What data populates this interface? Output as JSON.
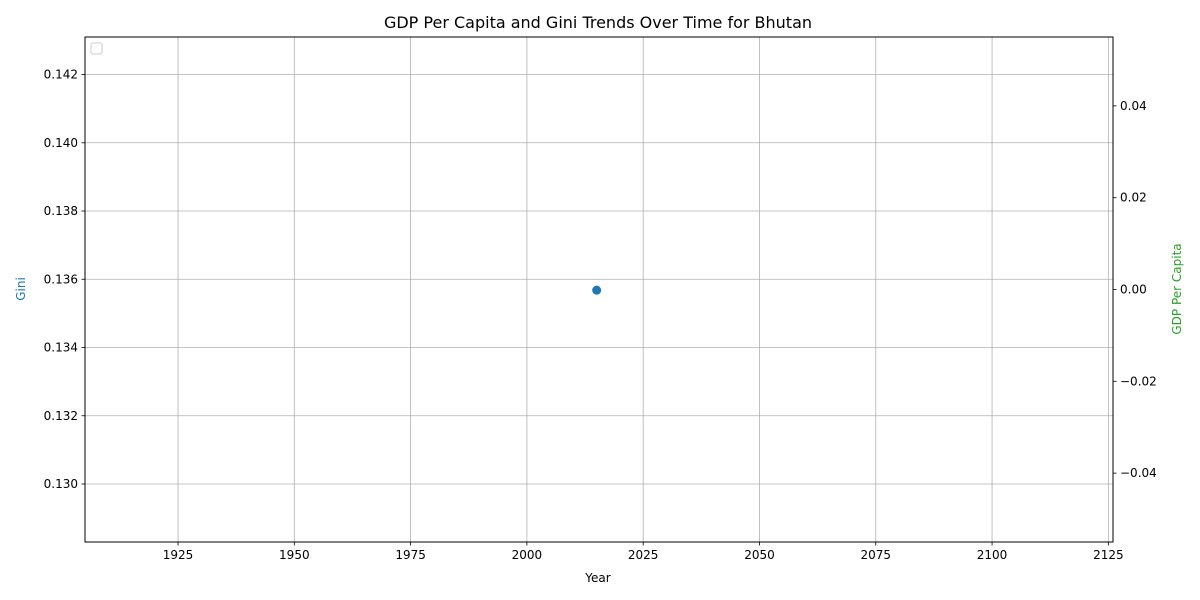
{
  "chart_data": {
    "type": "scatter",
    "title": "GDP Per Capita and Gini Trends Over Time for Bhutan",
    "xlabel": "Year",
    "ylabel_left": "Gini",
    "ylabel_right": "GDP Per Capita",
    "xlim": [
      1905,
      2126
    ],
    "ylim_left": [
      0.1283,
      0.1431
    ],
    "ylim_right": [
      -0.055,
      0.055
    ],
    "x_ticks": [
      "1925",
      "1950",
      "1975",
      "2000",
      "2025",
      "2050",
      "2075",
      "2100",
      "2125"
    ],
    "y_left_ticks": [
      "0.130",
      "0.132",
      "0.134",
      "0.136",
      "0.138",
      "0.140",
      "0.142"
    ],
    "y_right_ticks": [
      "−0.04",
      "−0.02",
      "0.00",
      "0.02",
      "0.04"
    ],
    "grid": true,
    "legend": "top-left, empty",
    "series": [
      {
        "axis": "left",
        "color": "#1f77b4",
        "x": [
          2015
        ],
        "y": [
          0.13568
        ]
      },
      {
        "axis": "right",
        "color": "#2ca02c",
        "x": [],
        "y": []
      }
    ],
    "colors": {
      "left_axis": "#1f77b4",
      "right_axis": "#2ca02c"
    }
  }
}
